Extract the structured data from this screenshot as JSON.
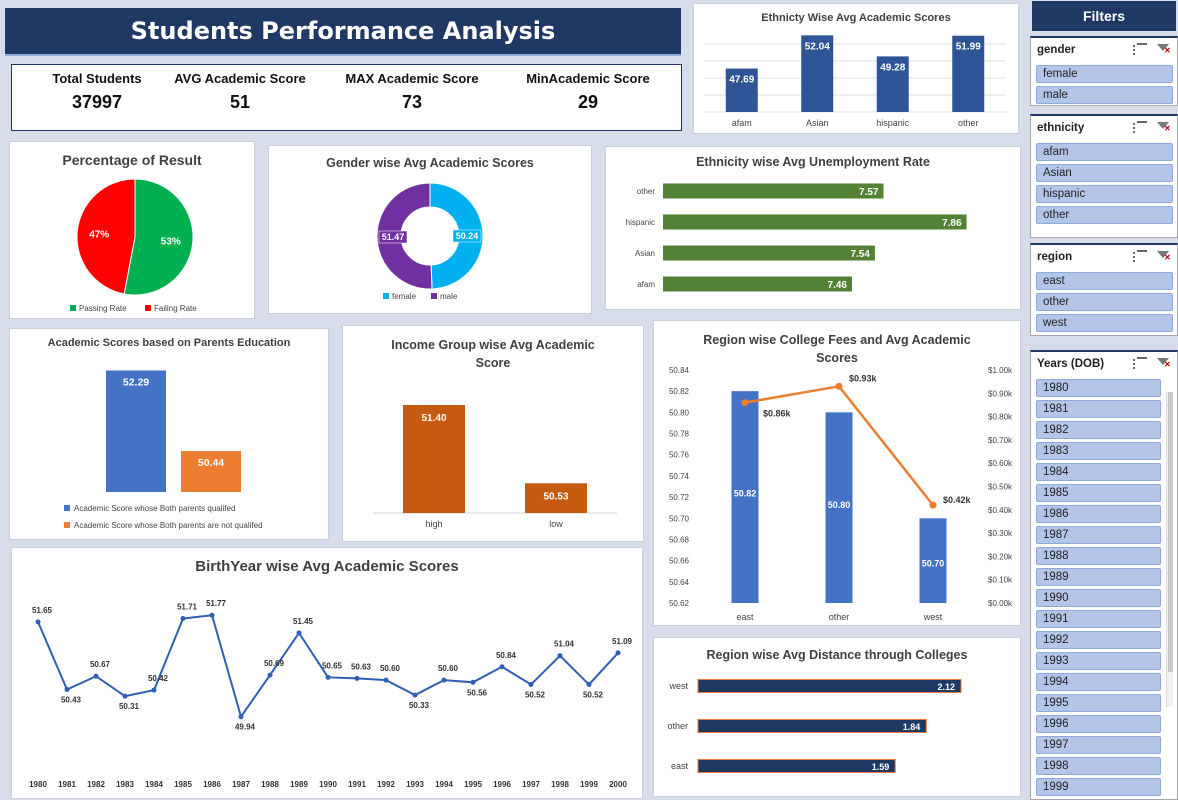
{
  "header": {
    "title": "Students Performance Analysis"
  },
  "kpis": [
    {
      "label": "Total Students",
      "value": "37997"
    },
    {
      "label": "AVG Academic Score",
      "value": "51"
    },
    {
      "label": "MAX Academic Score",
      "value": "73"
    },
    {
      "label": "MinAcademic Score",
      "value": "29"
    }
  ],
  "filters": {
    "title": "Filters",
    "slicers": [
      {
        "name": "gender",
        "items": [
          "female",
          "male"
        ]
      },
      {
        "name": "ethnicity",
        "items": [
          "afam",
          "Asian",
          "hispanic",
          "other"
        ]
      },
      {
        "name": "region",
        "items": [
          "east",
          "other",
          "west"
        ]
      },
      {
        "name": "Years (DOB)",
        "items": [
          "1980",
          "1981",
          "1982",
          "1983",
          "1984",
          "1985",
          "1986",
          "1987",
          "1988",
          "1989",
          "1990",
          "1991",
          "1992",
          "1993",
          "1994",
          "1995",
          "1996",
          "1997",
          "1998",
          "1999"
        ]
      }
    ]
  },
  "colors": {
    "navy": "#1f3864",
    "bar_blue": "#2f5597",
    "green": "#548235",
    "orange": "#c55a11",
    "pass_green": "#00b050",
    "fail_red": "#ff0000",
    "female": "#00b0f0",
    "male": "#7030a0",
    "line_orange": "#ed7d31"
  },
  "chart_data": [
    {
      "id": "ethnicity_scores",
      "type": "bar",
      "title": "Ethnicty Wise Avg Academic Scores",
      "categories": [
        "afam",
        "Asian",
        "hispanic",
        "other"
      ],
      "values": [
        47.69,
        52.04,
        49.28,
        51.99
      ],
      "labels": [
        "47.69",
        "52.04",
        "49.28",
        "51.99"
      ]
    },
    {
      "id": "result_pct",
      "type": "pie",
      "title": "Percentage of Result",
      "slices": [
        {
          "name": "Passing Rate",
          "value": 53,
          "label": "53%"
        },
        {
          "name": "Failing Rate",
          "value": 47,
          "label": "47%"
        }
      ],
      "legend": "bottom"
    },
    {
      "id": "gender_scores",
      "type": "pie",
      "title": "Gender wise Avg Academic Scores",
      "slices": [
        {
          "name": "female",
          "value": 50.24,
          "label": "50.24"
        },
        {
          "name": "male",
          "value": 51.47,
          "label": "51.47"
        }
      ],
      "legend": "bottom"
    },
    {
      "id": "ethnicity_unemp",
      "type": "bar",
      "title": "Ethnicity wise Avg Unemployment Rate",
      "categories": [
        "other",
        "hispanic",
        "Asian",
        "afam"
      ],
      "values": [
        7.57,
        7.86,
        7.54,
        7.46
      ],
      "labels": [
        "7.57",
        "7.86",
        "7.54",
        "7.46"
      ]
    },
    {
      "id": "parents_edu",
      "type": "bar",
      "title": "Academic Scores based on Parents Education",
      "series": [
        {
          "name": "Academic Score whose Both parents qualifed",
          "values": [
            52.29
          ],
          "label": "52.29"
        },
        {
          "name": "Academic Score whose Both parents are not qualifed",
          "values": [
            50.44
          ],
          "label": "50.44"
        }
      ],
      "legend": "bottom"
    },
    {
      "id": "income_scores",
      "type": "bar",
      "title": "Income Group wise Avg Academic Score",
      "categories": [
        "high",
        "low"
      ],
      "values": [
        51.4,
        50.53
      ],
      "labels": [
        "51.40",
        "50.53"
      ]
    },
    {
      "id": "region_fees",
      "type": "bar",
      "title": "Region wise College Fees and Avg Academic Scores",
      "categories": [
        "east",
        "other",
        "west"
      ],
      "bars": {
        "values": [
          50.82,
          50.8,
          50.7
        ],
        "labels": [
          "50.82",
          "50.80",
          "50.70"
        ]
      },
      "line": {
        "values": [
          0.86,
          0.93,
          0.42
        ],
        "labels": [
          "$0.86k",
          "$0.93k",
          "$0.42k"
        ]
      },
      "ylim": [
        50.62,
        50.84
      ],
      "yticks": [
        "50.62",
        "50.64",
        "50.66",
        "50.68",
        "50.70",
        "50.72",
        "50.74",
        "50.76",
        "50.78",
        "50.80",
        "50.82",
        "50.84"
      ],
      "y2lim": [
        0,
        1
      ],
      "y2ticks": [
        "$0.00k",
        "$0.10k",
        "$0.20k",
        "$0.30k",
        "$0.40k",
        "$0.50k",
        "$0.60k",
        "$0.70k",
        "$0.80k",
        "$0.90k",
        "$1.00k"
      ]
    },
    {
      "id": "birthyear_scores",
      "type": "line",
      "title": "BirthYear wise Avg Academic Scores",
      "x": [
        "1980",
        "1981",
        "1982",
        "1983",
        "1984",
        "1985",
        "1986",
        "1987",
        "1988",
        "1989",
        "1990",
        "1991",
        "1992",
        "1993",
        "1994",
        "1995",
        "1996",
        "1997",
        "1998",
        "1999",
        "2000"
      ],
      "values": [
        51.65,
        50.43,
        50.67,
        50.31,
        50.42,
        51.71,
        51.77,
        49.94,
        50.69,
        51.45,
        50.65,
        50.63,
        50.6,
        50.33,
        50.6,
        50.56,
        50.84,
        50.52,
        51.04,
        50.52,
        51.09
      ],
      "labels": [
        "51.65",
        "50.43",
        "50.67",
        "50.31",
        "50.42",
        "51.71",
        "51.77",
        "49.94",
        "50.69",
        "51.45",
        "50.65",
        "50.63",
        "50.60",
        "50.33",
        "50.60",
        "50.56",
        "50.84",
        "50.52",
        "51.04",
        "50.52",
        "51.09"
      ]
    },
    {
      "id": "region_distance",
      "type": "bar",
      "title": "Region wise Avg Distance through Colleges",
      "categories": [
        "west",
        "other",
        "east"
      ],
      "values": [
        2.12,
        1.84,
        1.59
      ],
      "labels": [
        "2.12",
        "1.84",
        "1.59"
      ]
    }
  ]
}
